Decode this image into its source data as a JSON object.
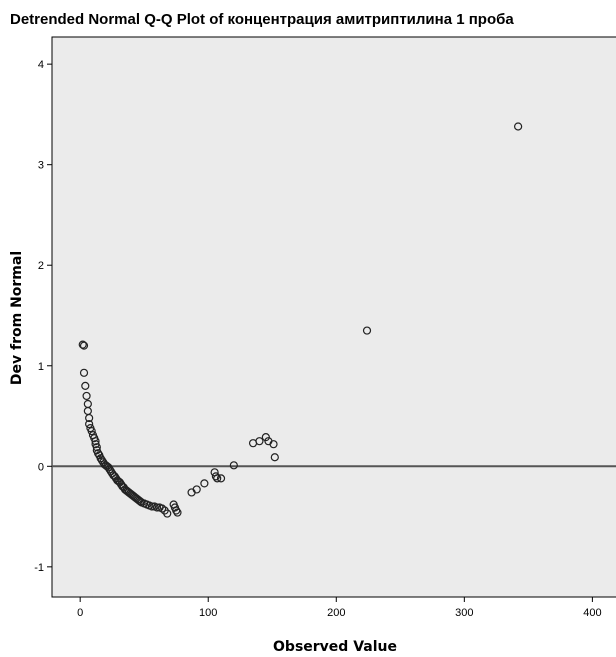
{
  "chart_data": {
    "type": "scatter",
    "title": "Detrended Normal Q-Q Plot of концентрация амитриптилина 1 проба",
    "xlabel": "Observed Value",
    "ylabel": "Dev from Normal",
    "xlim": [
      -22,
      420
    ],
    "ylim": [
      -1.3,
      4.27
    ],
    "xticks": [
      0,
      100,
      200,
      300,
      400
    ],
    "yticks": [
      -1,
      0,
      1,
      2,
      3,
      4
    ],
    "reference_line_y": 0,
    "grid": false,
    "colors": {
      "plot_background": "#ebebeb",
      "marker_stroke": "#222222",
      "reference_line": "#555555"
    },
    "points": [
      {
        "x": 2,
        "y": 1.21
      },
      {
        "x": 3,
        "y": 1.2
      },
      {
        "x": 3,
        "y": 0.93
      },
      {
        "x": 4,
        "y": 0.8
      },
      {
        "x": 5,
        "y": 0.7
      },
      {
        "x": 6,
        "y": 0.62
      },
      {
        "x": 6,
        "y": 0.55
      },
      {
        "x": 7,
        "y": 0.48
      },
      {
        "x": 7,
        "y": 0.42
      },
      {
        "x": 8,
        "y": 0.38
      },
      {
        "x": 9,
        "y": 0.35
      },
      {
        "x": 10,
        "y": 0.31
      },
      {
        "x": 11,
        "y": 0.28
      },
      {
        "x": 12,
        "y": 0.25
      },
      {
        "x": 12,
        "y": 0.22
      },
      {
        "x": 13,
        "y": 0.19
      },
      {
        "x": 13,
        "y": 0.16
      },
      {
        "x": 14,
        "y": 0.13
      },
      {
        "x": 15,
        "y": 0.11
      },
      {
        "x": 16,
        "y": 0.08
      },
      {
        "x": 17,
        "y": 0.06
      },
      {
        "x": 18,
        "y": 0.04
      },
      {
        "x": 19,
        "y": 0.02
      },
      {
        "x": 20,
        "y": 0.01
      },
      {
        "x": 21,
        "y": 0.0
      },
      {
        "x": 22,
        "y": -0.01
      },
      {
        "x": 23,
        "y": -0.03
      },
      {
        "x": 24,
        "y": -0.05
      },
      {
        "x": 25,
        "y": -0.07
      },
      {
        "x": 26,
        "y": -0.09
      },
      {
        "x": 27,
        "y": -0.1
      },
      {
        "x": 28,
        "y": -0.12
      },
      {
        "x": 29,
        "y": -0.14
      },
      {
        "x": 30,
        "y": -0.15
      },
      {
        "x": 31,
        "y": -0.16
      },
      {
        "x": 32,
        "y": -0.18
      },
      {
        "x": 33,
        "y": -0.2
      },
      {
        "x": 34,
        "y": -0.21
      },
      {
        "x": 35,
        "y": -0.23
      },
      {
        "x": 36,
        "y": -0.24
      },
      {
        "x": 37,
        "y": -0.25
      },
      {
        "x": 38,
        "y": -0.26
      },
      {
        "x": 39,
        "y": -0.27
      },
      {
        "x": 40,
        "y": -0.28
      },
      {
        "x": 41,
        "y": -0.29
      },
      {
        "x": 42,
        "y": -0.3
      },
      {
        "x": 43,
        "y": -0.31
      },
      {
        "x": 44,
        "y": -0.32
      },
      {
        "x": 45,
        "y": -0.33
      },
      {
        "x": 46,
        "y": -0.34
      },
      {
        "x": 47,
        "y": -0.35
      },
      {
        "x": 48,
        "y": -0.36
      },
      {
        "x": 50,
        "y": -0.37
      },
      {
        "x": 52,
        "y": -0.38
      },
      {
        "x": 54,
        "y": -0.39
      },
      {
        "x": 56,
        "y": -0.4
      },
      {
        "x": 58,
        "y": -0.4
      },
      {
        "x": 60,
        "y": -0.41
      },
      {
        "x": 62,
        "y": -0.41
      },
      {
        "x": 64,
        "y": -0.42
      },
      {
        "x": 66,
        "y": -0.44
      },
      {
        "x": 68,
        "y": -0.47
      },
      {
        "x": 73,
        "y": -0.38
      },
      {
        "x": 74,
        "y": -0.41
      },
      {
        "x": 75,
        "y": -0.44
      },
      {
        "x": 76,
        "y": -0.46
      },
      {
        "x": 87,
        "y": -0.26
      },
      {
        "x": 91,
        "y": -0.23
      },
      {
        "x": 97,
        "y": -0.17
      },
      {
        "x": 105,
        "y": -0.06
      },
      {
        "x": 106,
        "y": -0.1
      },
      {
        "x": 107,
        "y": -0.12
      },
      {
        "x": 110,
        "y": -0.12
      },
      {
        "x": 120,
        "y": 0.01
      },
      {
        "x": 135,
        "y": 0.23
      },
      {
        "x": 140,
        "y": 0.25
      },
      {
        "x": 145,
        "y": 0.29
      },
      {
        "x": 147,
        "y": 0.25
      },
      {
        "x": 151,
        "y": 0.22
      },
      {
        "x": 152,
        "y": 0.09
      },
      {
        "x": 224,
        "y": 1.35
      },
      {
        "x": 342,
        "y": 3.38
      }
    ]
  }
}
